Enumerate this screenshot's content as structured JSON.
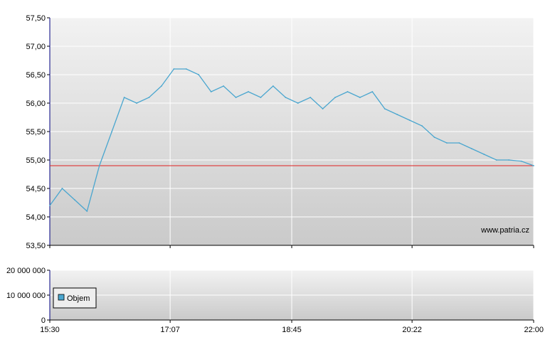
{
  "chart_data": [
    {
      "type": "line",
      "title": "",
      "xlabel": "",
      "ylabel": "",
      "x_ticks": [
        "15:30",
        "17:07",
        "18:45",
        "20:22",
        "22:00"
      ],
      "y_ticks": [
        "53,50",
        "54,00",
        "54,50",
        "55,00",
        "55,50",
        "56,00",
        "56,50",
        "57,00",
        "57,50"
      ],
      "ylim": [
        53.5,
        57.5
      ],
      "xlim": [
        "15:30",
        "22:00"
      ],
      "grid": true,
      "reference_line": {
        "value": 54.9,
        "color": "#e02020"
      },
      "watermark": "www.patria.cz",
      "line_color": "#4aa6cf",
      "x": [
        "15:30",
        "15:40",
        "15:50",
        "16:00",
        "16:10",
        "16:20",
        "16:30",
        "16:40",
        "16:50",
        "17:00",
        "17:10",
        "17:20",
        "17:30",
        "17:40",
        "17:50",
        "18:00",
        "18:10",
        "18:20",
        "18:30",
        "18:40",
        "18:50",
        "19:00",
        "19:10",
        "19:20",
        "19:30",
        "19:40",
        "19:50",
        "20:00",
        "20:10",
        "20:20",
        "20:30",
        "20:40",
        "20:50",
        "21:00",
        "21:10",
        "21:20",
        "21:30",
        "21:40",
        "21:50",
        "22:00"
      ],
      "series": [
        {
          "values": [
            54.2,
            54.5,
            54.3,
            54.1,
            54.9,
            55.5,
            56.1,
            56.0,
            56.1,
            56.3,
            56.6,
            56.6,
            56.5,
            56.2,
            56.3,
            56.1,
            56.2,
            56.1,
            56.3,
            56.1,
            56.0,
            56.1,
            55.9,
            56.1,
            56.2,
            56.1,
            56.2,
            55.9,
            55.8,
            55.7,
            55.6,
            55.4,
            55.3,
            55.3,
            55.2,
            55.1,
            55.0,
            55.0,
            54.98,
            54.9
          ]
        }
      ]
    },
    {
      "type": "bar",
      "title": "",
      "xlabel": "",
      "ylabel": "",
      "y_ticks": [
        "0",
        "10 000 000",
        "20 000 000"
      ],
      "ylim": [
        0,
        20000000
      ],
      "x_ticks": [
        "15:30",
        "17:07",
        "18:45",
        "20:22",
        "22:00"
      ],
      "grid": true,
      "legend": {
        "placement": "left",
        "items": [
          "Objem"
        ],
        "color": "#4aa6cf"
      },
      "series": [
        {
          "name": "Objem",
          "values": []
        }
      ]
    }
  ]
}
